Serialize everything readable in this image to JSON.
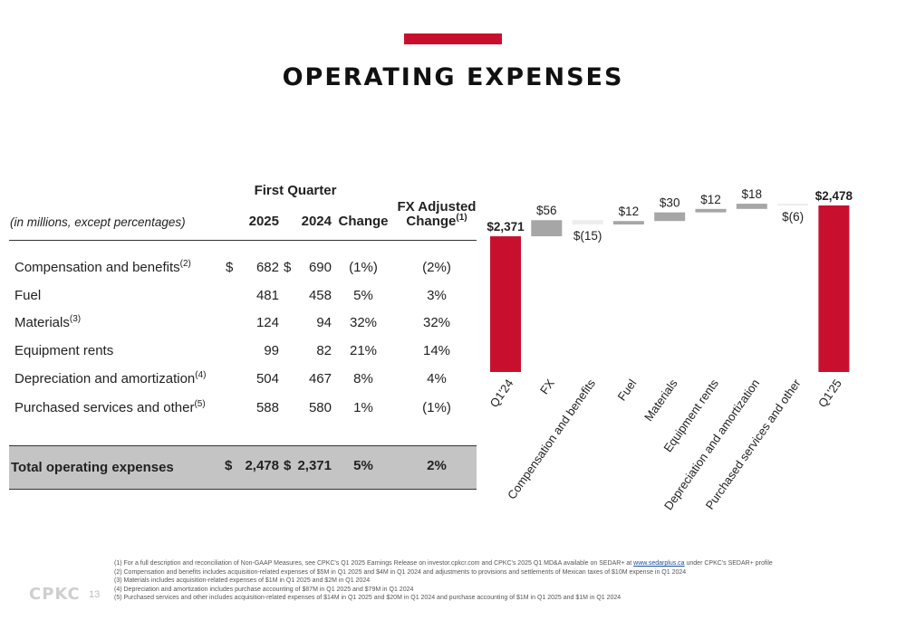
{
  "slide": {
    "title": "OPERATING EXPENSES",
    "page_number": "13",
    "logo_text": "CPKC"
  },
  "table": {
    "units_label": "(in millions, except percentages)",
    "group_header": "First Quarter",
    "col_2025": "2025",
    "col_2024": "2024",
    "col_change": "Change",
    "col_fx_line1": "FX Adjusted",
    "col_fx_line2": "Change",
    "col_fx_sup": "(1)",
    "rows": [
      {
        "label": "Compensation and benefits",
        "sup": "(2)",
        "dollar_2025": "$",
        "v2025": "682",
        "dollar_2024": "$",
        "v2024": "690",
        "change": "(1%)",
        "fx_change": "(2%)"
      },
      {
        "label": "Fuel",
        "sup": "",
        "dollar_2025": "",
        "v2025": "481",
        "dollar_2024": "",
        "v2024": "458",
        "change": "5%",
        "fx_change": "3%"
      },
      {
        "label": "Materials",
        "sup": "(3)",
        "dollar_2025": "",
        "v2025": "124",
        "dollar_2024": "",
        "v2024": "94",
        "change": "32%",
        "fx_change": "32%"
      },
      {
        "label": "Equipment rents",
        "sup": "",
        "dollar_2025": "",
        "v2025": "99",
        "dollar_2024": "",
        "v2024": "82",
        "change": "21%",
        "fx_change": "14%"
      },
      {
        "label": "Depreciation and amortization",
        "sup": "(4)",
        "dollar_2025": "",
        "v2025": "504",
        "dollar_2024": "",
        "v2024": "467",
        "change": "8%",
        "fx_change": "4%"
      },
      {
        "label": "Purchased services and other",
        "sup": "(5)",
        "dollar_2025": "",
        "v2025": "588",
        "dollar_2024": "",
        "v2024": "580",
        "change": "1%",
        "fx_change": "(1%)"
      }
    ],
    "total": {
      "label": "Total operating expenses",
      "dollar_2025": "$",
      "v2025": "2,478",
      "dollar_2024": "$",
      "v2024": "2,371",
      "change": "5%",
      "fx_change": "2%"
    }
  },
  "chart_data": {
    "type": "bar",
    "subtype": "waterfall",
    "categories": [
      "Q1'24",
      "FX",
      "Compensation and benefits",
      "Fuel",
      "Materials",
      "Equipment rents",
      "Depreciation and amortization",
      "Purchased services and other",
      "Q1'25"
    ],
    "values": [
      2371,
      56,
      -15,
      12,
      30,
      12,
      18,
      -6,
      2478
    ],
    "kinds": [
      "total",
      "delta",
      "delta",
      "delta",
      "delta",
      "delta",
      "delta",
      "delta",
      "total"
    ],
    "data_labels": [
      "$2,371",
      "$56",
      "$(15)",
      "$12",
      "$30",
      "$12",
      "$18",
      "$(6)",
      "$2,478"
    ],
    "colors": {
      "total": "#c8102e",
      "increase": "#a6a6a6",
      "decrease": "#ededed"
    },
    "ylim": [
      1900,
      2500
    ],
    "grid": false,
    "legend": "none"
  },
  "footnotes": [
    {
      "prefix": "(1)  For a full description and reconciliation of Non-GAAP Measures, see CPKC's Q1 2025 Earnings Release on investor.cpkcr.com and CPKC's 2025 Q1 MD&A available on SEDAR+ at ",
      "link": "www.sedarplus.ca",
      "suffix": " under CPKC's SEDAR+ profile"
    },
    {
      "prefix": "(2)  Compensation and benefits includes acquisition-related expenses of $5M in Q1 2025 and $4M in Q1 2024 and adjustments to provisions and settlements of Mexican taxes of $10M expense in Q1 2024",
      "link": "",
      "suffix": ""
    },
    {
      "prefix": "(3)  Materials includes acquisition-related expenses of $1M in Q1 2025 and $2M in Q1 2024",
      "link": "",
      "suffix": ""
    },
    {
      "prefix": "(4)  Depreciation and amortization includes purchase accounting of $87M in Q1 2025 and $79M in Q1 2024",
      "link": "",
      "suffix": ""
    },
    {
      "prefix": "(5)  Purchased services and other includes acquisition-related expenses of $14M in Q1 2025 and $20M in Q1 2024 and purchase accounting of $1M in Q1 2025 and $1M in Q1 2024",
      "link": "",
      "suffix": ""
    }
  ]
}
